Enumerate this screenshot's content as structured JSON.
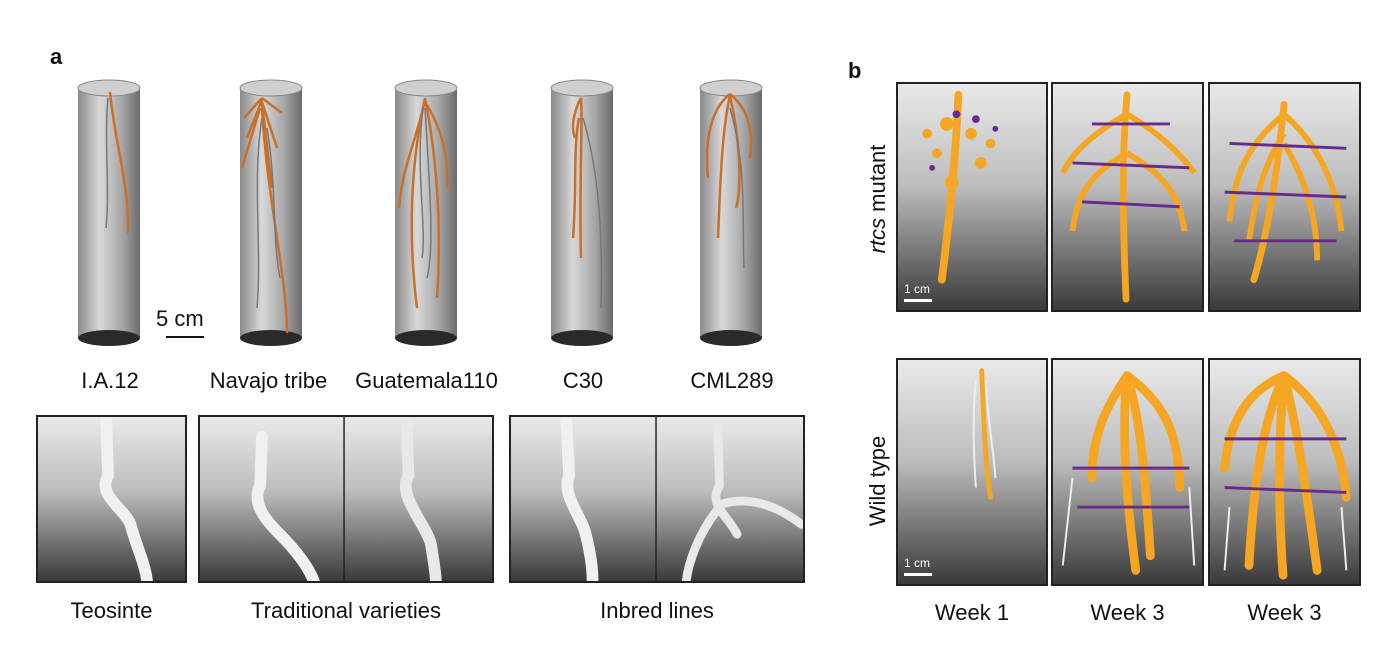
{
  "panel_a": {
    "letter": "a",
    "scale_label": "5 cm",
    "cylinders": [
      {
        "label": "I.A.12"
      },
      {
        "label": "Navajo tribe"
      },
      {
        "label": "Guatemala110"
      },
      {
        "label": "C30"
      },
      {
        "label": "CML289"
      }
    ],
    "groups": [
      {
        "label": "Teosinte"
      },
      {
        "label": "Traditional varieties"
      },
      {
        "label": "Inbred lines"
      }
    ]
  },
  "panel_b": {
    "letter": "b",
    "row1_label_italic": "rtcs",
    "row1_label_rest": " mutant",
    "row2_label": "Wild type",
    "scale_label": "1 cm",
    "columns": [
      {
        "label": "Week 1"
      },
      {
        "label": "Week 3"
      },
      {
        "label": "Week 3"
      }
    ]
  },
  "colors": {
    "root_orange": "#c8702a",
    "root_yellow": "#f5a623",
    "root_purple": "#6a2a8a",
    "border": "#222222"
  }
}
